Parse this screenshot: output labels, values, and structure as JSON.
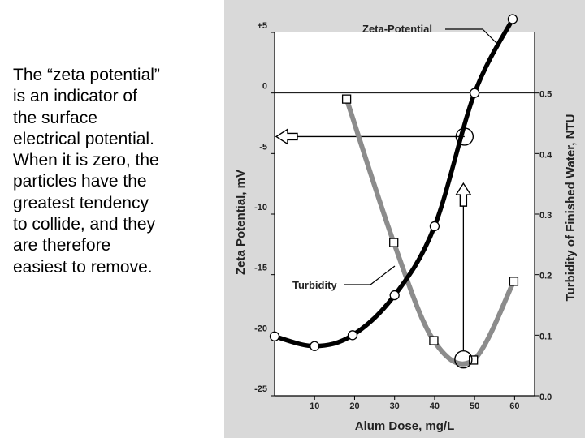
{
  "caption": {
    "lines": [
      "The “zeta potential”",
      "is an indicator of",
      "the surface",
      "electrical potential.",
      "When it is zero, the",
      "particles have the",
      "greatest tendency",
      "to collide, and they",
      "are therefore",
      "easiest to remove."
    ]
  },
  "chart_data": {
    "type": "line",
    "title": "",
    "xlabel": "Alum Dose,  mg/L",
    "ylabel": "Zeta Potential, mV",
    "y2label": "Turbidity of Finished Water, NTU",
    "xlim": [
      0,
      65
    ],
    "ylim": [
      -25,
      5
    ],
    "y2lim": [
      0.0,
      0.6
    ],
    "x_ticks": [
      "10",
      "20",
      "30",
      "40",
      "50",
      "60"
    ],
    "x_tick_values": [
      10,
      20,
      30,
      40,
      50,
      60
    ],
    "y_ticks": [
      "+5",
      "0",
      "-5",
      "-10",
      "-15",
      "-20",
      "-25"
    ],
    "y_tick_values": [
      5,
      0,
      -5,
      -10,
      -15,
      -20,
      -25
    ],
    "y2_ticks": [
      "0.5",
      "0.4",
      "0.3",
      "0.2",
      "0.1",
      "0.0"
    ],
    "y2_tick_values": [
      0.5,
      0.4,
      0.3,
      0.2,
      0.1,
      0.0
    ],
    "grid": false,
    "zero_line": 0,
    "series": [
      {
        "name": "Zeta-Potential",
        "axis": "left",
        "marker": "circle",
        "color": "#000000",
        "x": [
          0,
          10,
          19.5,
          30,
          40,
          50,
          59.5
        ],
        "y": [
          -20.1,
          -20.9,
          -20.0,
          -16.7,
          -11.0,
          0.0,
          6.1
        ]
      },
      {
        "name": "Turbidity",
        "axis": "right",
        "marker": "square",
        "color": "#8c8c8c",
        "x": [
          18,
          29.8,
          39.8,
          49.7,
          59.8
        ],
        "y": [
          0.49,
          0.253,
          0.091,
          0.059,
          0.189
        ]
      }
    ],
    "highlights": [
      {
        "axis": "left",
        "x": 47.5,
        "y": -3.6
      },
      {
        "axis": "right",
        "x": 47.2,
        "y": 0.06
      }
    ],
    "guides": {
      "horizontal": {
        "from_x": 47.5,
        "y": -3.6,
        "arrow": "left"
      },
      "vertical": {
        "x": 47.2,
        "from_y": 0.06,
        "to_y": 0.34,
        "arrow": "up"
      }
    },
    "annotations": [
      {
        "text": "Zeta-Potential",
        "series": "Zeta-Potential"
      },
      {
        "text": "Turbidity",
        "series": "Turbidity"
      }
    ]
  }
}
